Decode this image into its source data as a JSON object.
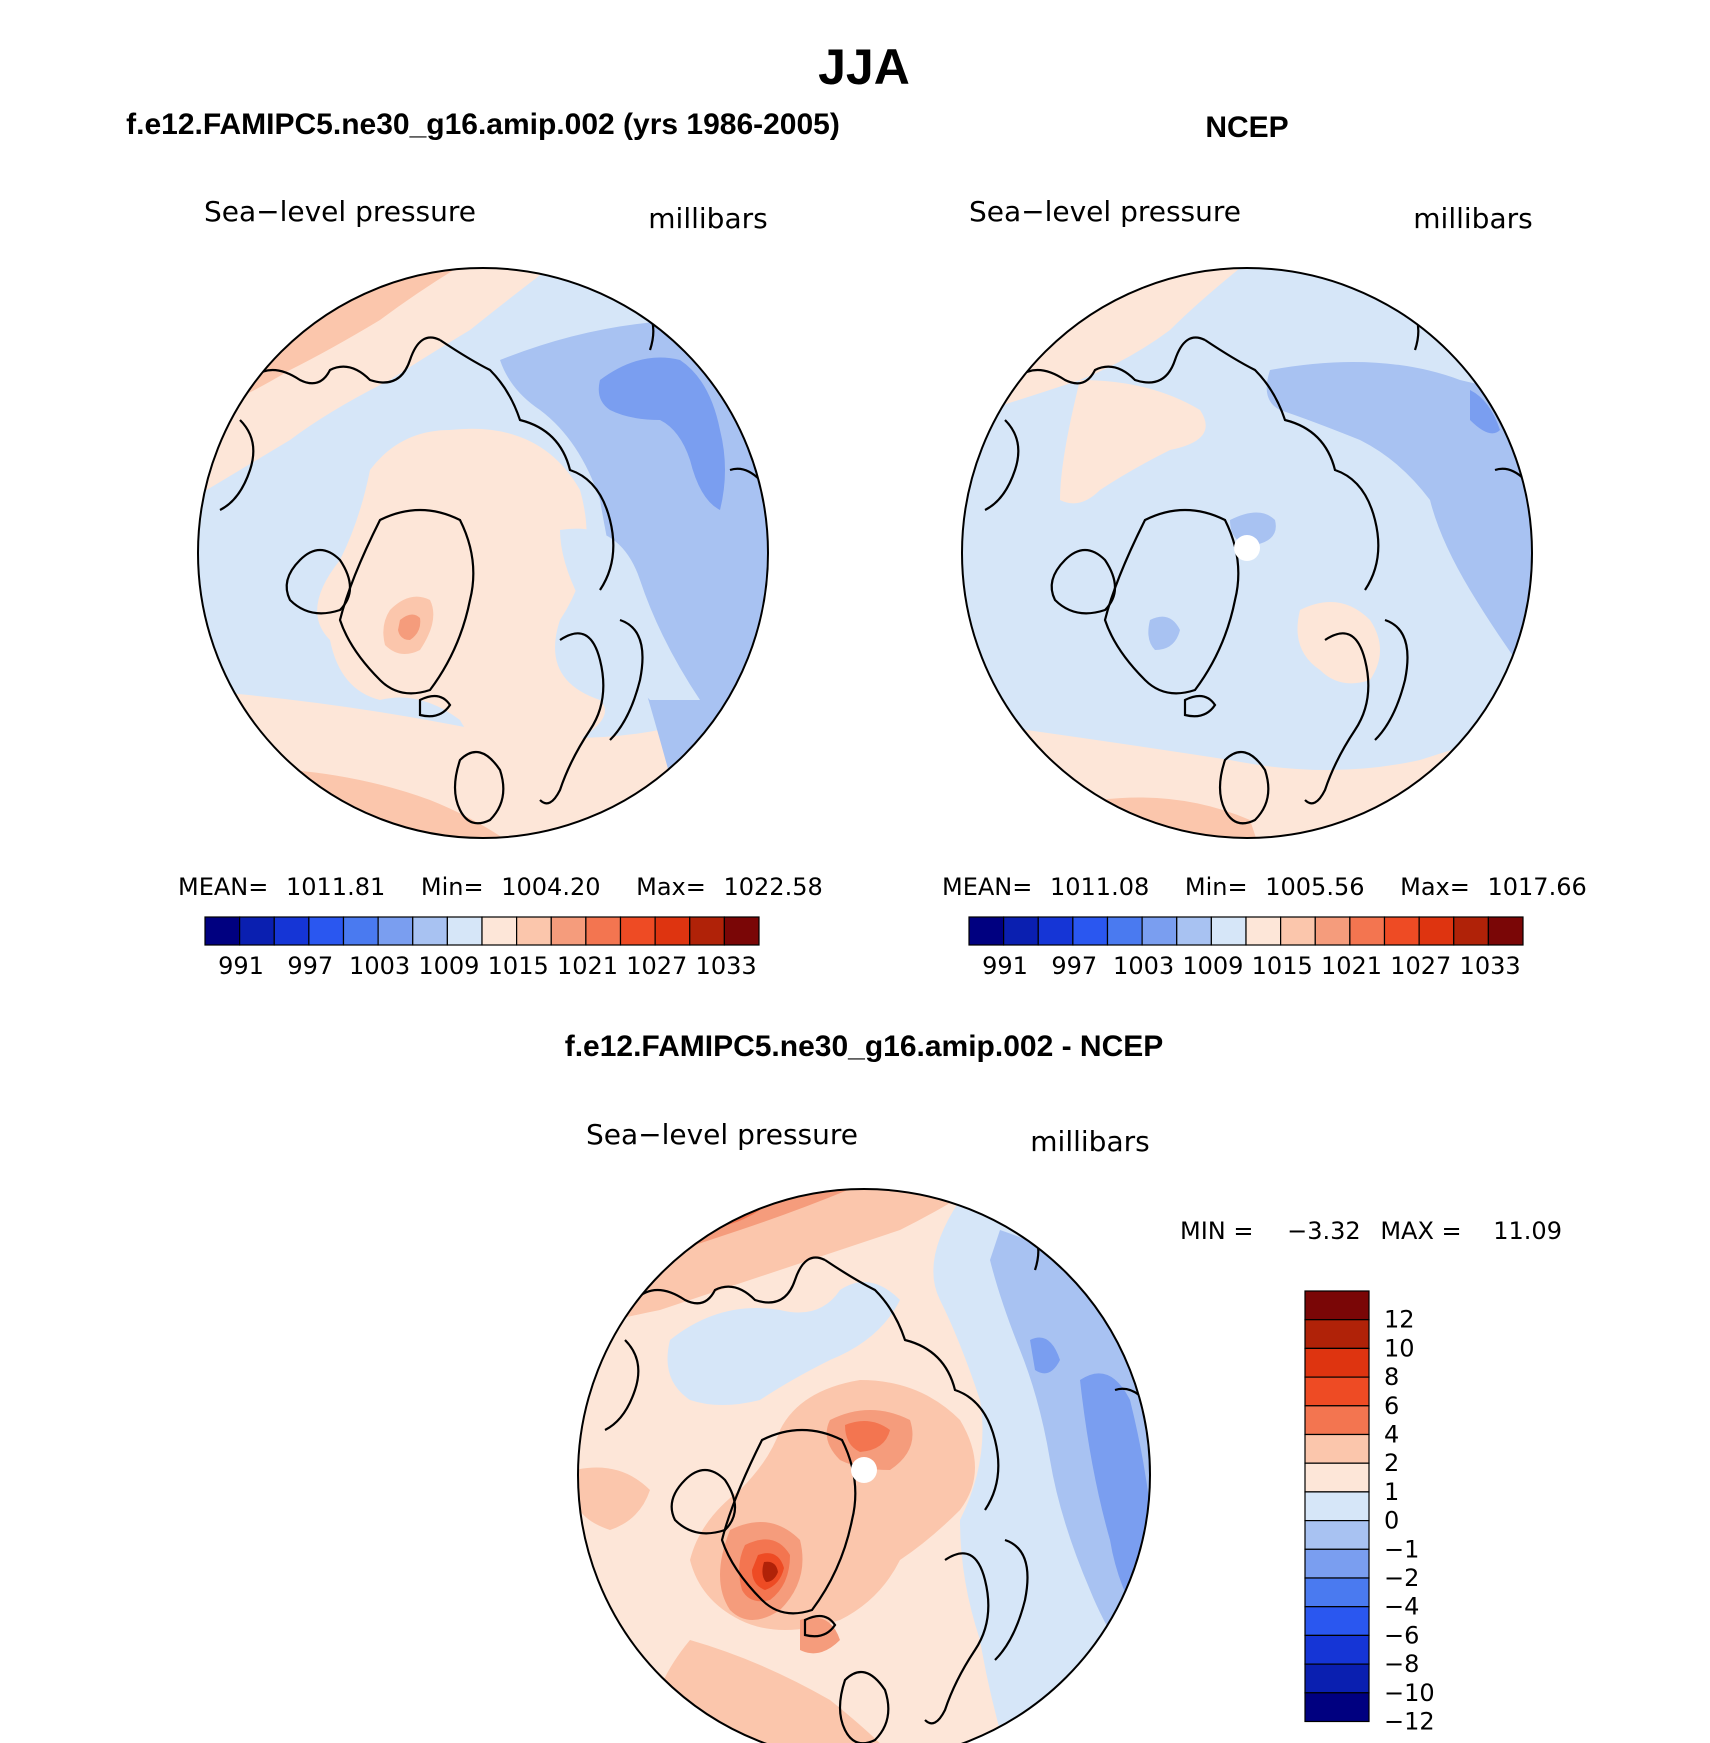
{
  "page_title": "JJA",
  "colors": {
    "ocean_fill": "#ffffff",
    "coast": "#000000",
    "pole_hole": "#ffffff"
  },
  "panels": [
    {
      "id": "model",
      "header": "f.e12.FAMIPC5.ne30_g16.amip.002 (yrs 1986-2005)",
      "left_label": "Sea−level pressure",
      "right_label": "millibars",
      "stats": {
        "mean_label": "MEAN=",
        "mean": "1011.81",
        "min_label": "Min=",
        "min": "1004.20",
        "max_label": "Max=",
        "max": "1022.58"
      },
      "colorbar": {
        "colors": [
          "#000080",
          "#0a1fb0",
          "#1535d6",
          "#2a57f0",
          "#4a7af0",
          "#7a9ef0",
          "#a8c2f2",
          "#d6e6f8",
          "#fde6d8",
          "#fbc6ac",
          "#f59c7c",
          "#f37550",
          "#ee4b24",
          "#de3410",
          "#b02208",
          "#7a0606"
        ],
        "tick_labels": [
          "991",
          "997",
          "1003",
          "1009",
          "1015",
          "1021",
          "1027",
          "1033"
        ]
      }
    },
    {
      "id": "obs",
      "header": "NCEP",
      "left_label": "Sea−level pressure",
      "right_label": "millibars",
      "stats": {
        "mean_label": "MEAN=",
        "mean": "1011.08",
        "min_label": "Min=",
        "min": "1005.56",
        "max_label": "Max=",
        "max": "1017.66"
      },
      "colorbar": {
        "colors": [
          "#000080",
          "#0a1fb0",
          "#1535d6",
          "#2a57f0",
          "#4a7af0",
          "#7a9ef0",
          "#a8c2f2",
          "#d6e6f8",
          "#fde6d8",
          "#fbc6ac",
          "#f59c7c",
          "#f37550",
          "#ee4b24",
          "#de3410",
          "#b02208",
          "#7a0606"
        ],
        "tick_labels": [
          "991",
          "997",
          "1003",
          "1009",
          "1015",
          "1021",
          "1027",
          "1033"
        ]
      }
    },
    {
      "id": "diff",
      "header": "f.e12.FAMIPC5.ne30_g16.amip.002 - NCEP",
      "left_label": "Sea−level pressure",
      "right_label": "millibars",
      "stats": {
        "min_label": "MIN =",
        "min": "−3.32",
        "max_label": "MAX =",
        "max": "11.09"
      },
      "colorbar": {
        "colors": [
          "#7a0606",
          "#b02208",
          "#de3410",
          "#ee4b24",
          "#f37550",
          "#fbc6ac",
          "#fde6d8",
          "#d6e6f8",
          "#a8c2f2",
          "#7a9ef0",
          "#4a7af0",
          "#2a57f0",
          "#1535d6",
          "#0a1fb0",
          "#000080"
        ],
        "tick_labels": [
          "12",
          "10",
          "8",
          "6",
          "4",
          "2",
          "1",
          "0",
          "−1",
          "−2",
          "−4",
          "−6",
          "−8",
          "−10",
          "−12"
        ]
      }
    }
  ]
}
